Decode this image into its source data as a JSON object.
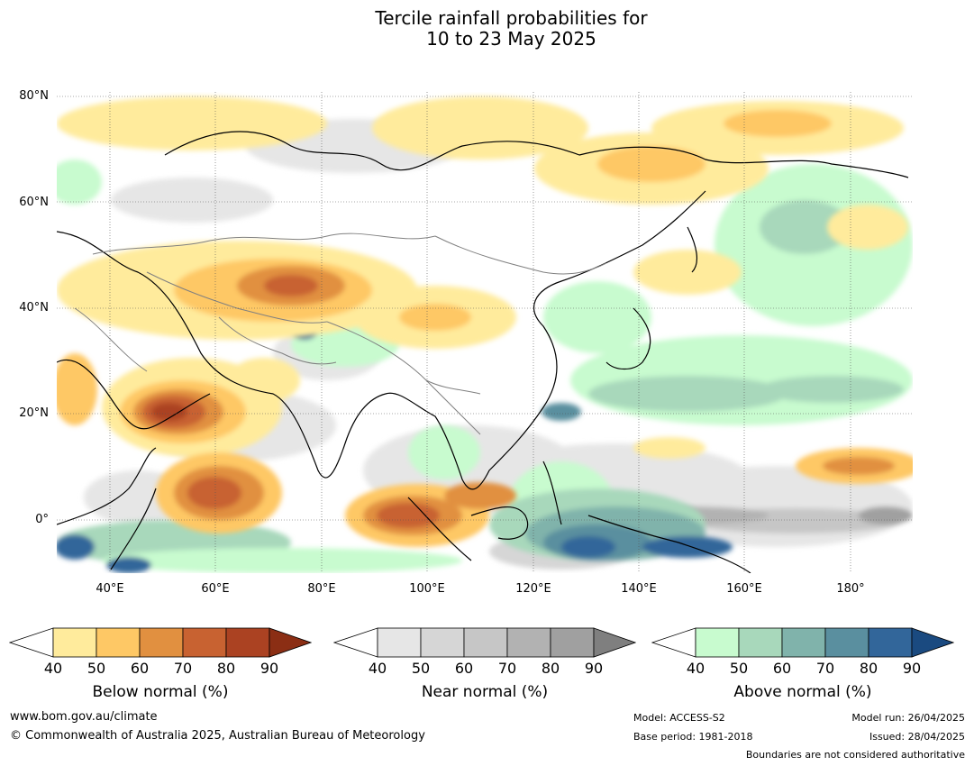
{
  "title_line1": "Tercile rainfall probabilities for",
  "title_line2": "10 to 23 May 2025",
  "map": {
    "lat_labels": [
      "80°N",
      "60°N",
      "40°N",
      "20°N",
      "0°"
    ],
    "lon_labels": [
      "40°E",
      "60°E",
      "80°E",
      "100°E",
      "120°E",
      "140°E",
      "160°E",
      "180°"
    ],
    "lat_range": [
      -10,
      80
    ],
    "lon_range": [
      30,
      192
    ]
  },
  "colorbars": [
    {
      "title": "Below normal (%)",
      "ticks": [
        "40",
        "50",
        "60",
        "70",
        "80",
        "90"
      ],
      "colors": [
        "#ffeb9c",
        "#fec865",
        "#e19040",
        "#c86231",
        "#ab4222",
        "#8b2e14"
      ]
    },
    {
      "title": "Near normal (%)",
      "ticks": [
        "40",
        "50",
        "60",
        "70",
        "80",
        "90"
      ],
      "colors": [
        "#e6e6e6",
        "#d6d6d6",
        "#c6c6c6",
        "#b2b2b2",
        "#a0a0a0",
        "#7f7f7f"
      ]
    },
    {
      "title": "Above normal (%)",
      "ticks": [
        "40",
        "50",
        "60",
        "70",
        "80",
        "90"
      ],
      "colors": [
        "#c8fbcf",
        "#a8d8bb",
        "#80b3ab",
        "#5a8f9f",
        "#32669a",
        "#1a4a80"
      ]
    }
  ],
  "footer": {
    "website": "www.bom.gov.au/climate",
    "copyright": "© Commonwealth of Australia 2025, Australian Bureau of Meteorology",
    "model": "Model: ACCESS-S2",
    "base_period": "Base period: 1981-2018",
    "model_run": "Model run: 26/04/2025",
    "issued": "Issued: 28/04/2025",
    "disclaimer": "Boundaries are not considered authoritative"
  }
}
